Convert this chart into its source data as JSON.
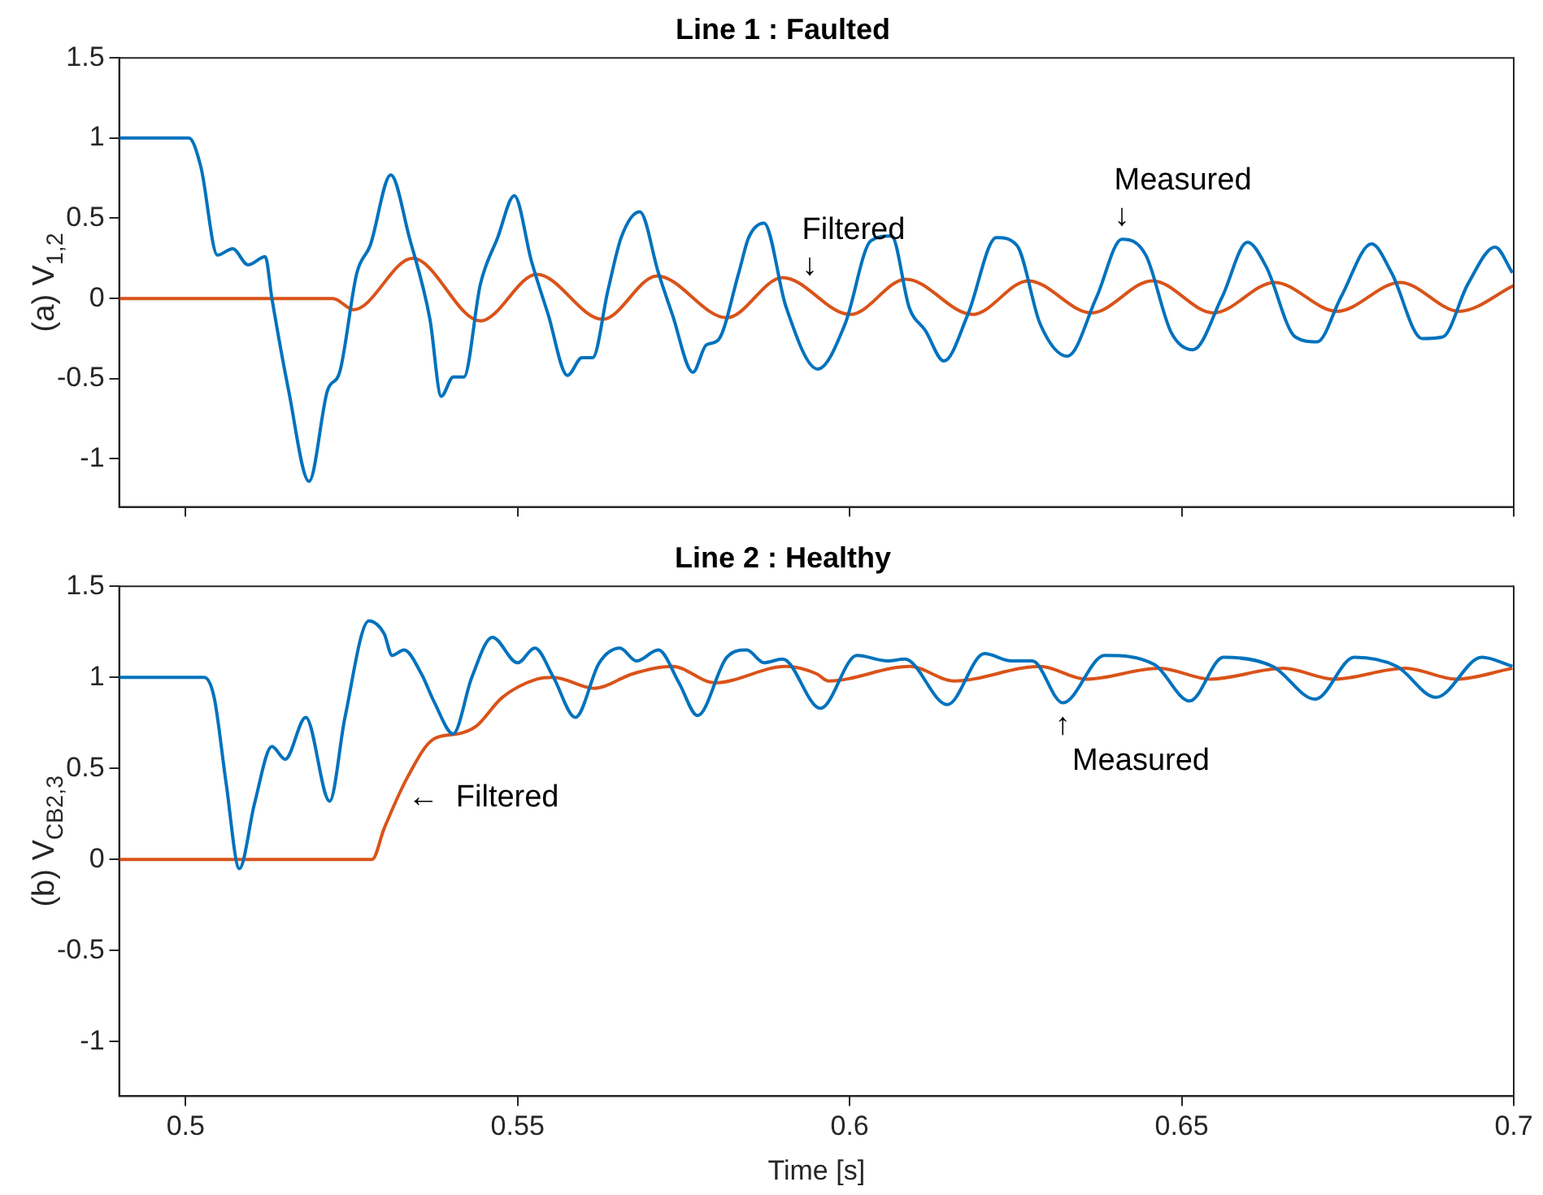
{
  "chart_data": [
    {
      "type": "line",
      "title": "Line 1 : Faulted",
      "ylabel": "(a) V$_{1,2}$",
      "xlim": [
        0.49,
        0.7
      ],
      "xticks": [
        0.5,
        0.55,
        0.6,
        0.65,
        0.7
      ],
      "ylim": [
        -1.3,
        1.5
      ],
      "yticks": [
        -1,
        -0.5,
        0,
        0.5,
        1,
        1.5
      ],
      "grid": false,
      "legend": false,
      "marker": "none",
      "line_style": "solid",
      "tick_labels": "y",
      "annotations": [
        {
          "text": "Filtered\n↓",
          "x": 0.594,
          "y": 0.06
        },
        {
          "text": "Measured\n↓",
          "x": 0.641,
          "y": 0.37
        }
      ],
      "series": [
        {
          "color": "#0072bd",
          "x": [
            0.49,
            0.5005,
            0.5023,
            0.5048,
            0.5071,
            0.5094,
            0.512,
            0.513,
            0.5155,
            0.5186,
            0.5214,
            0.5232,
            0.5258,
            0.5278,
            0.5309,
            0.5337,
            0.5368,
            0.5385,
            0.5403,
            0.5419,
            0.5444,
            0.547,
            0.5495,
            0.5521,
            0.5546,
            0.5575,
            0.5597,
            0.5613,
            0.5636,
            0.5656,
            0.5684,
            0.5712,
            0.5733,
            0.5764,
            0.5784,
            0.5802,
            0.5833,
            0.5848,
            0.5871,
            0.5904,
            0.5952,
            0.5993,
            0.6032,
            0.6063,
            0.609,
            0.6114,
            0.6142,
            0.6178,
            0.6221,
            0.6252,
            0.6287,
            0.6328,
            0.6372,
            0.641,
            0.6446,
            0.6484,
            0.6517,
            0.6561,
            0.6599,
            0.6627,
            0.6671,
            0.6704,
            0.674,
            0.6786,
            0.6816,
            0.6862,
            0.6893,
            0.6931,
            0.6972,
            0.6998
          ],
          "values": [
            1,
            1,
            0.82,
            0.27,
            0.31,
            0.21,
            0.26,
            0,
            -0.57,
            -1.14,
            -0.57,
            -0.46,
            0.16,
            0.33,
            0.77,
            0.38,
            -0.13,
            -0.61,
            -0.49,
            -0.49,
            0.09,
            0.38,
            0.64,
            0.23,
            -0.1,
            -0.48,
            -0.37,
            -0.37,
            0.05,
            0.38,
            0.54,
            0.16,
            -0.1,
            -0.46,
            -0.29,
            -0.26,
            0.16,
            0.38,
            0.47,
            -0.05,
            -0.44,
            -0.16,
            0.36,
            0.39,
            -0.06,
            -0.2,
            -0.39,
            -0.1,
            0.38,
            0.33,
            -0.16,
            -0.36,
            0.01,
            0.37,
            0.27,
            -0.21,
            -0.32,
            0.01,
            0.35,
            0.2,
            -0.24,
            -0.27,
            0.01,
            0.34,
            0.16,
            -0.25,
            -0.24,
            0.09,
            0.32,
            0.16
          ]
        },
        {
          "color": "#d95319",
          "x": [
            0.49,
            0.5222,
            0.5253,
            0.5342,
            0.5444,
            0.5529,
            0.5628,
            0.571,
            0.5815,
            0.5899,
            0.6001,
            0.6085,
            0.6185,
            0.6269,
            0.6364,
            0.6456,
            0.6548,
            0.664,
            0.6734,
            0.6829,
            0.6918,
            0.7
          ],
          "values": [
            0,
            0,
            -0.07,
            0.25,
            -0.14,
            0.15,
            -0.13,
            0.14,
            -0.12,
            0.13,
            -0.1,
            0.12,
            -0.1,
            0.11,
            -0.09,
            0.11,
            -0.09,
            0.1,
            -0.08,
            0.1,
            -0.08,
            0.08
          ]
        }
      ]
    },
    {
      "type": "line",
      "title": "Line 2 : Healthy",
      "xlabel": "Time [s]",
      "ylabel": "(b) V$_{CB2,3}$",
      "xlim": [
        0.49,
        0.7
      ],
      "xticks": [
        0.5,
        0.55,
        0.6,
        0.65,
        0.7
      ],
      "ylim": [
        -1.3,
        1.5
      ],
      "yticks": [
        -1,
        -0.5,
        0,
        0.5,
        1,
        1.5
      ],
      "grid": false,
      "legend": false,
      "marker": "none",
      "line_style": "solid",
      "annotations": [
        {
          "text": "←  Filtered",
          "x": 0.532,
          "y": 0.34
        },
        {
          "text": "↑\n  Measured",
          "x": 0.6321,
          "y": 0.86
        }
      ],
      "series": [
        {
          "color": "#0072bd",
          "x": [
            0.49,
            0.5028,
            0.5043,
            0.5061,
            0.5081,
            0.5104,
            0.513,
            0.515,
            0.5181,
            0.5217,
            0.524,
            0.5276,
            0.5299,
            0.5311,
            0.5329,
            0.5355,
            0.5375,
            0.5403,
            0.5431,
            0.5462,
            0.55,
            0.5526,
            0.5554,
            0.5587,
            0.5623,
            0.5654,
            0.5679,
            0.5712,
            0.5743,
            0.5771,
            0.5815,
            0.5845,
            0.5871,
            0.5899,
            0.5956,
            0.6011,
            0.6057,
            0.6083,
            0.6147,
            0.6203,
            0.6244,
            0.6275,
            0.6321,
            0.6384,
            0.6459,
            0.6512,
            0.6563,
            0.6637,
            0.6701,
            0.676,
            0.6824,
            0.6883,
            0.6952,
            0.6998
          ],
          "values": [
            1,
            1,
            0.89,
            0.42,
            -0.05,
            0.31,
            0.62,
            0.55,
            0.78,
            0.32,
            0.78,
            1.31,
            1.24,
            1.12,
            1.15,
            1.02,
            0.86,
            0.69,
            1,
            1.22,
            1.08,
            1.16,
            1,
            0.78,
            1.08,
            1.16,
            1.09,
            1.15,
            0.97,
            0.79,
            1.11,
            1.15,
            1.08,
            1.1,
            0.83,
            1.12,
            1.09,
            1.1,
            0.85,
            1.13,
            1.09,
            1.09,
            0.86,
            1.12,
            1.07,
            0.87,
            1.11,
            1.06,
            0.88,
            1.11,
            1.06,
            0.89,
            1.11,
            1.06
          ]
        },
        {
          "color": "#d95319",
          "x": [
            0.49,
            0.5281,
            0.5299,
            0.5334,
            0.5373,
            0.5411,
            0.5437,
            0.5477,
            0.5529,
            0.5554,
            0.5615,
            0.5674,
            0.5733,
            0.5797,
            0.5904,
            0.595,
            0.5968,
            0.6091,
            0.6157,
            0.6287,
            0.6356,
            0.6466,
            0.6543,
            0.6653,
            0.6729,
            0.6837,
            0.6913,
            0.6998
          ],
          "values": [
            0,
            0,
            0.17,
            0.45,
            0.66,
            0.69,
            0.73,
            0.89,
            0.99,
            1,
            0.94,
            1.02,
            1.06,
            0.97,
            1.06,
            1.02,
            0.98,
            1.06,
            0.98,
            1.06,
            0.99,
            1.05,
            0.99,
            1.05,
            0.99,
            1.05,
            0.99,
            1.05
          ]
        }
      ]
    }
  ]
}
